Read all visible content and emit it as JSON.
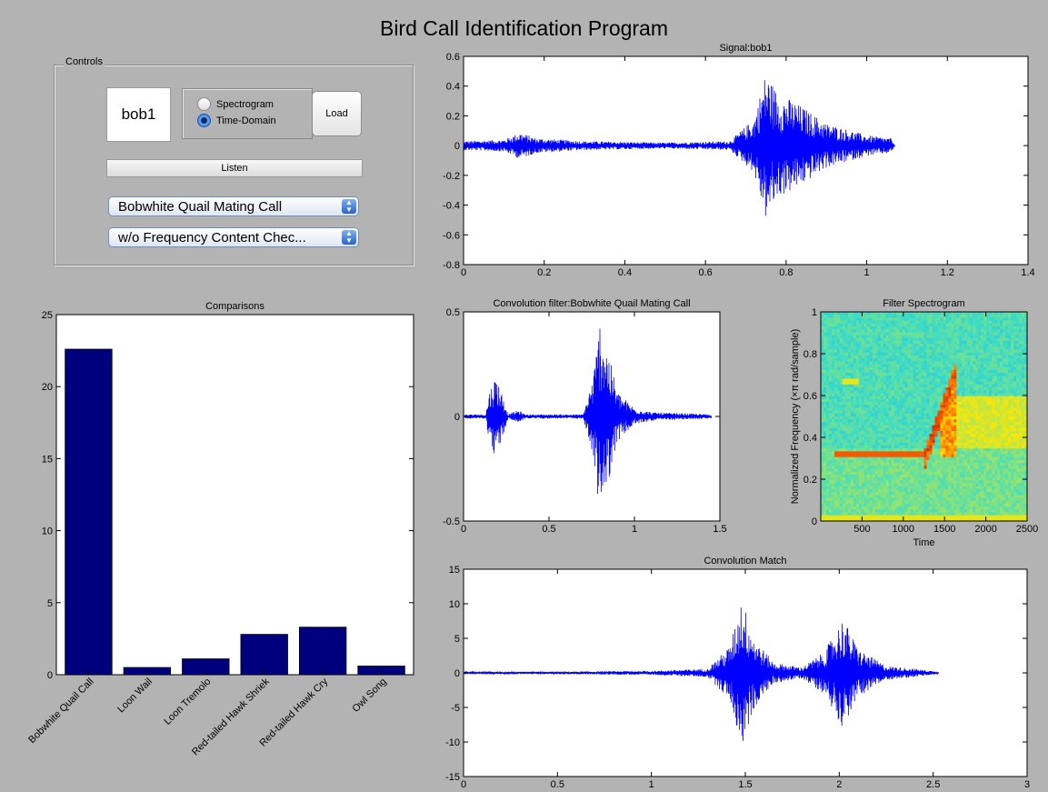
{
  "window": {
    "title": "Bird Call Identification Program"
  },
  "controls": {
    "legend": "Controls",
    "name_value": "bob1",
    "radios": [
      {
        "label": "Spectrogram",
        "checked": false
      },
      {
        "label": "Time-Domain",
        "checked": true
      }
    ],
    "load_label": "Load",
    "listen_label": "Listen",
    "filter_select": "Bobwhite Quail Mating Call",
    "mode_select": "w/o Frequency Content Chec..."
  },
  "icons": {
    "select_arrows": "updown-arrows-icon"
  },
  "chart_data": [
    {
      "id": "signal",
      "type": "line",
      "title": "Signal:bob1",
      "xlim": [
        0,
        1.4
      ],
      "ylim": [
        -0.8,
        0.6
      ],
      "xticks": [
        "0",
        "0.2",
        "0.4",
        "0.6",
        "0.8",
        "1",
        "1.2",
        "1.4"
      ],
      "yticks": [
        "0.6",
        "0.4",
        "0.2",
        "0",
        "-0.2",
        "-0.4",
        "-0.6",
        "-0.8"
      ],
      "series_color": "#0000ff",
      "envelope": [
        [
          0,
          0.03
        ],
        [
          0.1,
          0.04
        ],
        [
          0.14,
          0.09
        ],
        [
          0.18,
          0.05
        ],
        [
          0.3,
          0.03
        ],
        [
          0.5,
          0.02
        ],
        [
          0.66,
          0.03
        ],
        [
          0.72,
          0.18
        ],
        [
          0.75,
          0.5
        ],
        [
          0.78,
          0.35
        ],
        [
          0.82,
          0.3
        ],
        [
          0.9,
          0.15
        ],
        [
          1.0,
          0.07
        ],
        [
          1.06,
          0.05
        ],
        [
          1.07,
          0
        ]
      ]
    },
    {
      "id": "comparisons",
      "type": "bar",
      "title": "Comparisons",
      "categories": [
        "Bobwhite Quail Call",
        "Loon Wail",
        "Loon Tremolo",
        "Red-tailed Hawk Shriek",
        "Red-tailed Hawk Cry",
        "Owl Song"
      ],
      "values": [
        22.6,
        0.5,
        1.1,
        2.8,
        3.3,
        0.6
      ],
      "ylim": [
        0,
        25
      ],
      "yticks": [
        "25",
        "20",
        "15",
        "10",
        "5",
        "0"
      ],
      "bar_color": "#00007f"
    },
    {
      "id": "convolution-filter",
      "type": "line",
      "title": "Convolution filter:Bobwhite Quail Mating Call",
      "xlim": [
        0,
        1.5
      ],
      "ylim": [
        -0.5,
        0.5
      ],
      "xticks": [
        "0",
        "0.5",
        "1",
        "1.5"
      ],
      "yticks": [
        "0.5",
        "0",
        "-0.5"
      ],
      "series_color": "#0000ff",
      "envelope": [
        [
          0,
          0.01
        ],
        [
          0.13,
          0.01
        ],
        [
          0.15,
          0.12
        ],
        [
          0.19,
          0.2
        ],
        [
          0.23,
          0.1
        ],
        [
          0.26,
          0.01
        ],
        [
          0.32,
          0.03
        ],
        [
          0.36,
          0.01
        ],
        [
          0.7,
          0.01
        ],
        [
          0.76,
          0.2
        ],
        [
          0.8,
          0.48
        ],
        [
          0.85,
          0.3
        ],
        [
          0.9,
          0.12
        ],
        [
          1.0,
          0.04
        ],
        [
          1.1,
          0.02
        ],
        [
          1.45,
          0.01
        ]
      ]
    },
    {
      "id": "filter-spectrogram",
      "type": "heatmap",
      "title": "Filter Spectrogram",
      "xlabel": "Time",
      "ylabel": "Normalized Frequency  (×π rad/sample)",
      "xlim": [
        0,
        2500
      ],
      "ylim": [
        0,
        1
      ],
      "xticks": [
        "500",
        "1000",
        "1500",
        "2000",
        "2500"
      ],
      "yticks": [
        "1",
        "0.8",
        "0.6",
        "0.4",
        "0.2",
        "0"
      ]
    },
    {
      "id": "convolution-match",
      "type": "line",
      "title": "Convolution Match",
      "xlim": [
        0,
        3
      ],
      "ylim": [
        -15,
        15
      ],
      "xticks": [
        "0",
        "0.5",
        "1",
        "1.5",
        "2",
        "2.5",
        "3"
      ],
      "yticks": [
        "15",
        "10",
        "5",
        "0",
        "-5",
        "-10",
        "-15"
      ],
      "series_color": "#0000ff",
      "envelope": [
        [
          0,
          0.1
        ],
        [
          0.6,
          0.2
        ],
        [
          1.0,
          0.3
        ],
        [
          1.3,
          0.6
        ],
        [
          1.42,
          4
        ],
        [
          1.48,
          11
        ],
        [
          1.55,
          5
        ],
        [
          1.65,
          1.5
        ],
        [
          1.8,
          0.8
        ],
        [
          1.92,
          3
        ],
        [
          2.02,
          8
        ],
        [
          2.1,
          3.5
        ],
        [
          2.25,
          1
        ],
        [
          2.4,
          0.6
        ],
        [
          2.52,
          0.2
        ],
        [
          2.53,
          0
        ]
      ]
    }
  ]
}
